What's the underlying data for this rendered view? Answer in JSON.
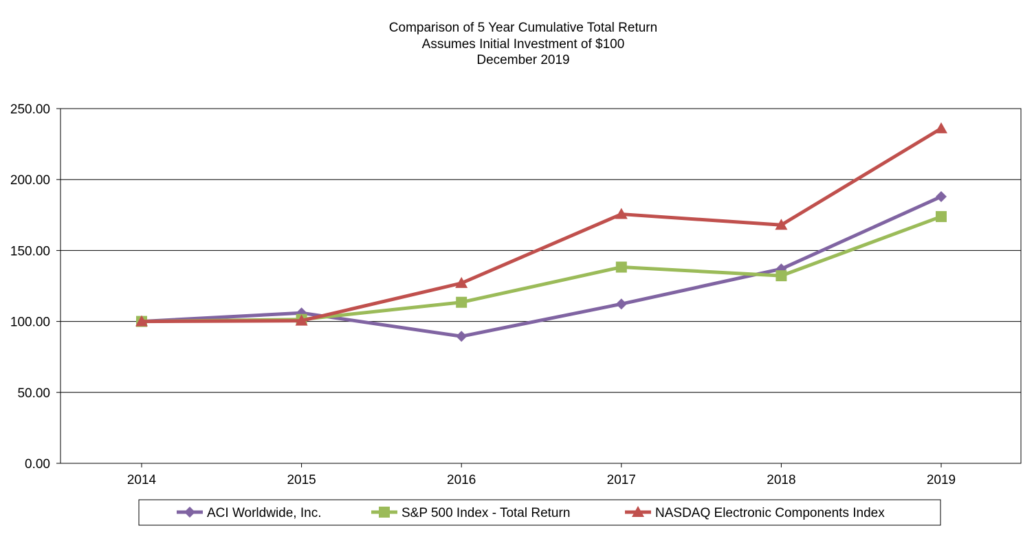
{
  "chart_data": {
    "type": "line",
    "title": "Comparison of 5 Year Cumulative Total Return",
    "subtitle_lines": [
      "Assumes Initial Investment of $100",
      "December 2019"
    ],
    "xlabel": "",
    "ylabel": "",
    "categories": [
      "2014",
      "2015",
      "2016",
      "2017",
      "2018",
      "2019"
    ],
    "ylim": [
      0,
      250
    ],
    "yticks": [
      0,
      50,
      100,
      150,
      200,
      250
    ],
    "ytick_labels": [
      "0.00",
      "50.00",
      "100.00",
      "150.00",
      "200.00",
      "250.00"
    ],
    "grid": true,
    "legend_position": "bottom",
    "series": [
      {
        "name": "ACI Worldwide, Inc.",
        "color": "#8064A2",
        "marker": "diamond",
        "values": [
          100.0,
          106.0,
          89.5,
          112.3,
          137.0,
          188.0
        ]
      },
      {
        "name": "S&P 500 Index - Total Return",
        "color": "#9BBB59",
        "marker": "square",
        "values": [
          100.0,
          101.4,
          113.5,
          138.3,
          132.2,
          173.9
        ]
      },
      {
        "name": "NASDAQ Electronic Components Index",
        "color": "#C0504D",
        "marker": "triangle",
        "values": [
          100.0,
          100.5,
          127.0,
          175.6,
          168.0,
          236.0
        ]
      }
    ]
  }
}
